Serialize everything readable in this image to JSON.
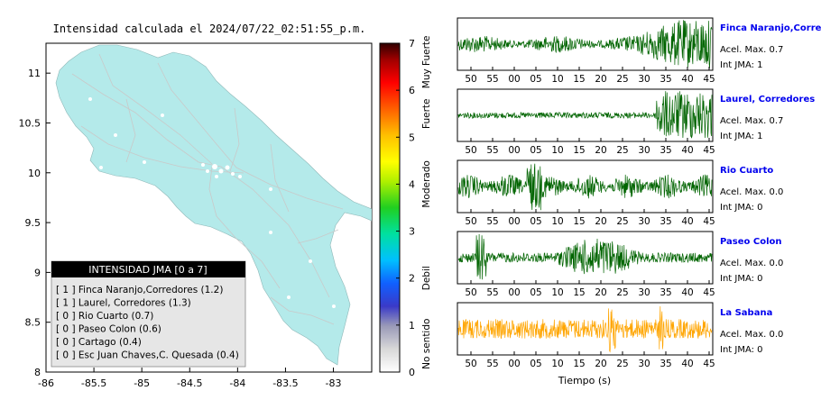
{
  "map": {
    "title": "Intensidad calculada el 2024/07/22_02:51:55_p.m.",
    "x_ticks": [
      "-86",
      "-85.5",
      "-85",
      "-84.5",
      "-84",
      "-83.5",
      "-83"
    ],
    "y_ticks": [
      "11",
      "10.5",
      "10",
      "9.5",
      "9",
      "8.5",
      "8"
    ],
    "land_color": "#b4eaea",
    "legend": {
      "title": "INTENSIDAD JMA [0 a 7]",
      "entries": [
        "[ 1 ]  Finca Naranjo,Corredores (1.2)",
        "[ 1 ]  Laurel, Corredores (1.3)",
        "[ 0 ]  Rio Cuarto (0.7)",
        "[ 0 ]  Paseo Colon (0.6)",
        "[ 0 ]  Cartago (0.4)",
        "[ 0 ]  Esc Juan Chaves,C. Quesada (0.4)"
      ]
    }
  },
  "colorbar": {
    "ticks": [
      "0",
      "1",
      "2",
      "3",
      "4",
      "5",
      "6",
      "7"
    ],
    "categories": [
      "No sentido",
      "Debil",
      "Moderado",
      "Fuerte",
      "Muy Fuerte"
    ]
  },
  "traces": [
    {
      "station": "Finca Naranjo,Corredores",
      "acel": "Acel. Max. 0.7",
      "jma": "Int JMA: 1",
      "color": "#006400",
      "ticks": [
        "50",
        "55",
        "00",
        "05",
        "10",
        "15",
        "20",
        "25",
        "30",
        "35",
        "40",
        "45"
      ]
    },
    {
      "station": "Laurel, Corredores",
      "acel": "Acel. Max. 0.7",
      "jma": "Int JMA: 1",
      "color": "#006400",
      "ticks": [
        "50",
        "55",
        "00",
        "05",
        "10",
        "15",
        "20",
        "25",
        "30",
        "35",
        "40",
        "45"
      ]
    },
    {
      "station": "Rio Cuarto",
      "acel": "Acel. Max. 0.0",
      "jma": "Int JMA: 0",
      "color": "#006400",
      "ticks": [
        "50",
        "55",
        "00",
        "05",
        "10",
        "15",
        "20",
        "25",
        "30",
        "35",
        "40",
        "45"
      ]
    },
    {
      "station": "Paseo Colon",
      "acel": "Acel. Max. 0.0",
      "jma": "Int JMA: 0",
      "color": "#006400",
      "ticks": [
        "50",
        "55",
        "00",
        "05",
        "10",
        "15",
        "20",
        "25",
        "30",
        "35",
        "40",
        "45"
      ]
    },
    {
      "station": "La Sabana",
      "acel": "Acel. Max. 0.0",
      "jma": "Int JMA: 0",
      "color": "#ffa500",
      "ticks": [
        "50",
        "55",
        "00",
        "05",
        "10",
        "15",
        "20",
        "25",
        "30",
        "35",
        "40",
        "45"
      ]
    }
  ],
  "waveform_xlabel": "Tiempo (s)",
  "chart_data": [
    {
      "type": "map",
      "title": "Intensidad calculada el 2024/07/22_02:51:55_p.m.",
      "xlim": [
        -86,
        -82.6
      ],
      "ylim": [
        8,
        11.3
      ],
      "colorbar": {
        "range": [
          0,
          7
        ],
        "labels": [
          "No sentido",
          "Debil",
          "Moderado",
          "Fuerte",
          "Muy Fuerte"
        ]
      },
      "legend": {
        "title": "INTENSIDAD JMA [0 a 7]",
        "stations": [
          {
            "name": "Finca Naranjo,Corredores",
            "jma": 1,
            "value": 1.2
          },
          {
            "name": "Laurel, Corredores",
            "jma": 1,
            "value": 1.3
          },
          {
            "name": "Rio Cuarto",
            "jma": 0,
            "value": 0.7
          },
          {
            "name": "Paseo Colon",
            "jma": 0,
            "value": 0.6
          },
          {
            "name": "Cartago",
            "jma": 0,
            "value": 0.4
          },
          {
            "name": "Esc Juan Chaves,C. Quesada",
            "jma": 0,
            "value": 0.4
          }
        ]
      }
    },
    {
      "type": "line",
      "xlabel": "Tiempo (s)",
      "x_tick_labels": [
        "50",
        "55",
        "00",
        "05",
        "10",
        "15",
        "20",
        "25",
        "30",
        "35",
        "40",
        "45"
      ],
      "series": [
        {
          "name": "Finca Naranjo,Corredores",
          "acel_max": 0.7,
          "int_jma": 1
        },
        {
          "name": "Laurel, Corredores",
          "acel_max": 0.7,
          "int_jma": 1
        },
        {
          "name": "Rio Cuarto",
          "acel_max": 0.0,
          "int_jma": 0
        },
        {
          "name": "Paseo Colon",
          "acel_max": 0.0,
          "int_jma": 0
        },
        {
          "name": "La Sabana",
          "acel_max": 0.0,
          "int_jma": 0
        }
      ]
    }
  ]
}
